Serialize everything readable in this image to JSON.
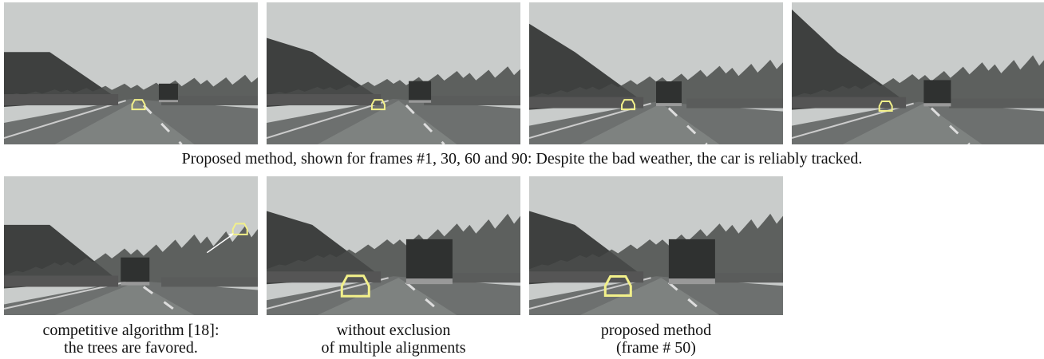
{
  "figure": {
    "row1_caption": "Proposed method, shown for frames #1, 30, 60 and 90: Despite the bad weather, the car is reliably tracked.",
    "panels": [
      {
        "caption_lines": [
          "competitive algorithm [18]:",
          "the trees are favored."
        ]
      },
      {
        "caption_lines": [
          "without exclusion",
          "of multiple alignments"
        ]
      },
      {
        "caption_lines": [
          "proposed method",
          "(frame # 50)"
        ]
      }
    ]
  }
}
